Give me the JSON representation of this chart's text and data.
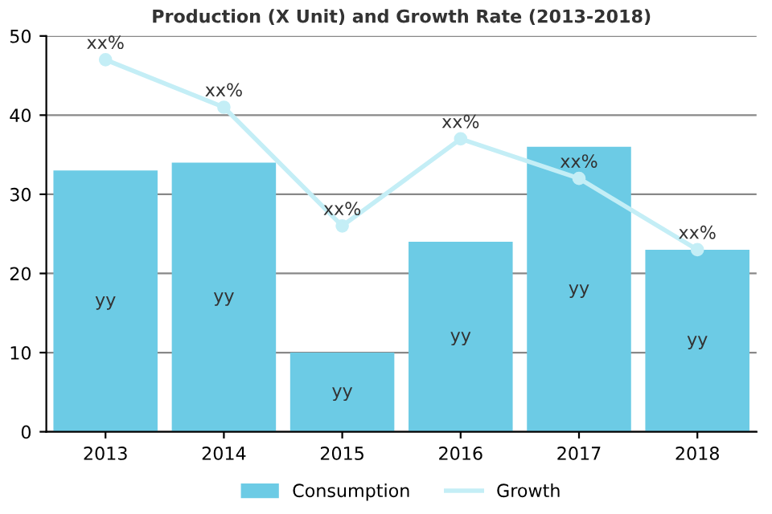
{
  "chart_data": {
    "type": "bar",
    "title": "Production (X Unit) and Growth Rate (2013-2018)",
    "categories": [
      "2013",
      "2014",
      "2015",
      "2016",
      "2017",
      "2018"
    ],
    "series": [
      {
        "name": "Consumption",
        "color": "#6ccbe5",
        "values": [
          33,
          34,
          10,
          24,
          36,
          23
        ],
        "value_labels": [
          "yy",
          "yy",
          "yy",
          "yy",
          "yy",
          "yy"
        ]
      },
      {
        "name": "Growth",
        "type": "line",
        "color": "#c4eef6",
        "values": [
          47,
          41,
          26,
          37,
          32,
          23
        ],
        "value_labels": [
          "xx%",
          "xx%",
          "xx%",
          "xx%",
          "xx%",
          "xx%"
        ],
        "marker": "circle"
      }
    ],
    "ylim": [
      0,
      50
    ],
    "yticks": [
      0,
      10,
      20,
      30,
      40,
      50
    ],
    "grid": "y",
    "legend": "bottom"
  }
}
